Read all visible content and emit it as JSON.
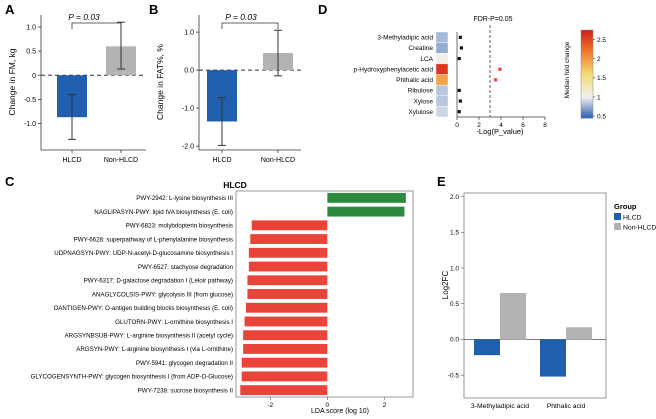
{
  "panels": {
    "A": {
      "letter": "A"
    },
    "B": {
      "letter": "B"
    },
    "C": {
      "letter": "C"
    },
    "D": {
      "letter": "D"
    },
    "E": {
      "letter": "E"
    }
  },
  "colors": {
    "hlcd": "#1f5fad",
    "non_hlcd": "#b3b3b3",
    "red_bar": "#e8443a",
    "green_bar": "#2b8a3e"
  },
  "chart_data": [
    {
      "panel": "A",
      "type": "bar",
      "categories": [
        "HLCD",
        "Non-HLCD"
      ],
      "values": [
        -0.87,
        0.6
      ],
      "error_low": [
        -1.33,
        0.13
      ],
      "error_high": [
        -0.4,
        1.1
      ],
      "ylabel": "Change in FM, kg",
      "ylim": [
        -1.55,
        1.25
      ],
      "yticks": [
        "1.0",
        "0.5",
        "0",
        "-0.5",
        "-1.0"
      ],
      "ytick_values": [
        1.0,
        0.5,
        0,
        -0.5,
        -1.0
      ],
      "annotation": "P = 0.03",
      "bar_colors": [
        "#1f5fad",
        "#b3b3b3"
      ]
    },
    {
      "panel": "B",
      "type": "bar",
      "categories": [
        "HLCD",
        "Non-HLCD"
      ],
      "values": [
        -1.35,
        0.45
      ],
      "error_low": [
        -1.98,
        -0.15
      ],
      "error_high": [
        -0.72,
        1.05
      ],
      "ylabel": "Change in FAT%, %",
      "ylim": [
        -2.1,
        1.45
      ],
      "yticks": [
        "1.0",
        "0.0",
        "-1.0",
        "-2.0"
      ],
      "ytick_values": [
        1.0,
        0.0,
        -1.0,
        -2.0
      ],
      "annotation": "P = 0.03",
      "bar_colors": [
        "#1f5fad",
        "#b3b3b3"
      ]
    },
    {
      "panel": "C",
      "type": "bar",
      "orientation": "horizontal",
      "title": "HLCD",
      "xlabel": "LDA score (log 10)",
      "xlim": [
        -3.2,
        3.0
      ],
      "xticks": [
        "-2",
        "0",
        "2"
      ],
      "xtick_values": [
        -2,
        0,
        2
      ],
      "categories": [
        "PWY-2942:  L-lysine biosynthesis III",
        "NAGLIPASYN-PWY: lipid IVA biosynthesis (E. coli)",
        "PWY-6823: molybdopterin biosynthesis",
        "PWY-6628: superpathway of L-phenylalanine biosynthesis",
        "UDPNAGSYN-PWY: UDP-N-acetyl-D-glucosamine biosynthesis I",
        "PWY-6527: stachyose degradation",
        "PWY-6317: D-galactose degradation I (Leloir pathway)",
        "ANAGLYCOLSIS-PWY: glycolysis III (from glucose)",
        "OANTIGEN-PWY: O-antigen building blocks biosynthesis (E. coli)",
        "GLUTORN-PWY: L-ornithine biosynthesis I",
        "ARGSYNBSUB-PWY: L-arginine biosynthesis II (acetyl cycle)",
        "ARGSYN-PWY: L-arginine biosynthesis I (via L-ornithine)",
        "PWY-5941: glycogen degradation II",
        "GLYCOGENSYNTH-PWY: glycogen biosynthesis I (from ADP-D-Glucose)",
        "PWY-7238: sucrose biosynthesis II"
      ],
      "values": [
        2.75,
        2.7,
        -2.65,
        -2.7,
        -2.75,
        -2.75,
        -2.8,
        -2.8,
        -2.85,
        -2.9,
        -2.95,
        -2.95,
        -3.0,
        -3.0,
        -3.05
      ]
    },
    {
      "panel": "D",
      "type": "scatter",
      "categories": [
        "3-Methyladipic acid",
        "Creatine",
        "LCA",
        "p-Hydroxyphenylacetic acid",
        "Phthalic acid",
        "Ribulose",
        "Xylose",
        "Xylulose"
      ],
      "x": [
        0.3,
        0.4,
        0.2,
        3.9,
        3.5,
        0.2,
        0.3,
        0.2
      ],
      "point_colors": [
        "#111111",
        "#111111",
        "#111111",
        "#e8443a",
        "#e8443a",
        "#111111",
        "#111111",
        "#111111"
      ],
      "heat_values": [
        0.8,
        0.75,
        1.05,
        2.6,
        1.95,
        0.85,
        0.85,
        0.9
      ],
      "xlabel": "-Log(P_value)",
      "xlim": [
        0,
        8
      ],
      "xticks": [
        "0",
        "2",
        "4",
        "6",
        "8"
      ],
      "xtick_values": [
        0,
        2,
        4,
        6,
        8
      ],
      "threshold_x": 3.0,
      "threshold_label": "FDR-P=0.05",
      "colorbar_title": "Median fold change",
      "colorbar_ticks": [
        "2.5",
        "2",
        "1.5",
        "1",
        "0.5"
      ],
      "colorbar_values": [
        2.5,
        2,
        1.5,
        1,
        0.5
      ],
      "colorbar_range": [
        0.45,
        2.75
      ]
    },
    {
      "panel": "E",
      "type": "bar",
      "categories": [
        "3-Methyladipic acid",
        "Phthalic acid"
      ],
      "series": [
        {
          "name": "HLCD",
          "values": [
            -0.22,
            -0.52
          ],
          "color": "#1f5fad"
        },
        {
          "name": "Non-HLCD",
          "values": [
            0.65,
            0.17
          ],
          "color": "#b3b3b3"
        }
      ],
      "ylabel": "Log2FC",
      "ylim": [
        -0.82,
        2.05
      ],
      "yticks": [
        "2.0",
        "1.5",
        "1.0",
        "0.5",
        "0.0",
        "-0.5"
      ],
      "ytick_values": [
        2.0,
        1.5,
        1.0,
        0.5,
        0.0,
        -0.5
      ],
      "legend_title": "Group",
      "legend_position": "right"
    }
  ]
}
